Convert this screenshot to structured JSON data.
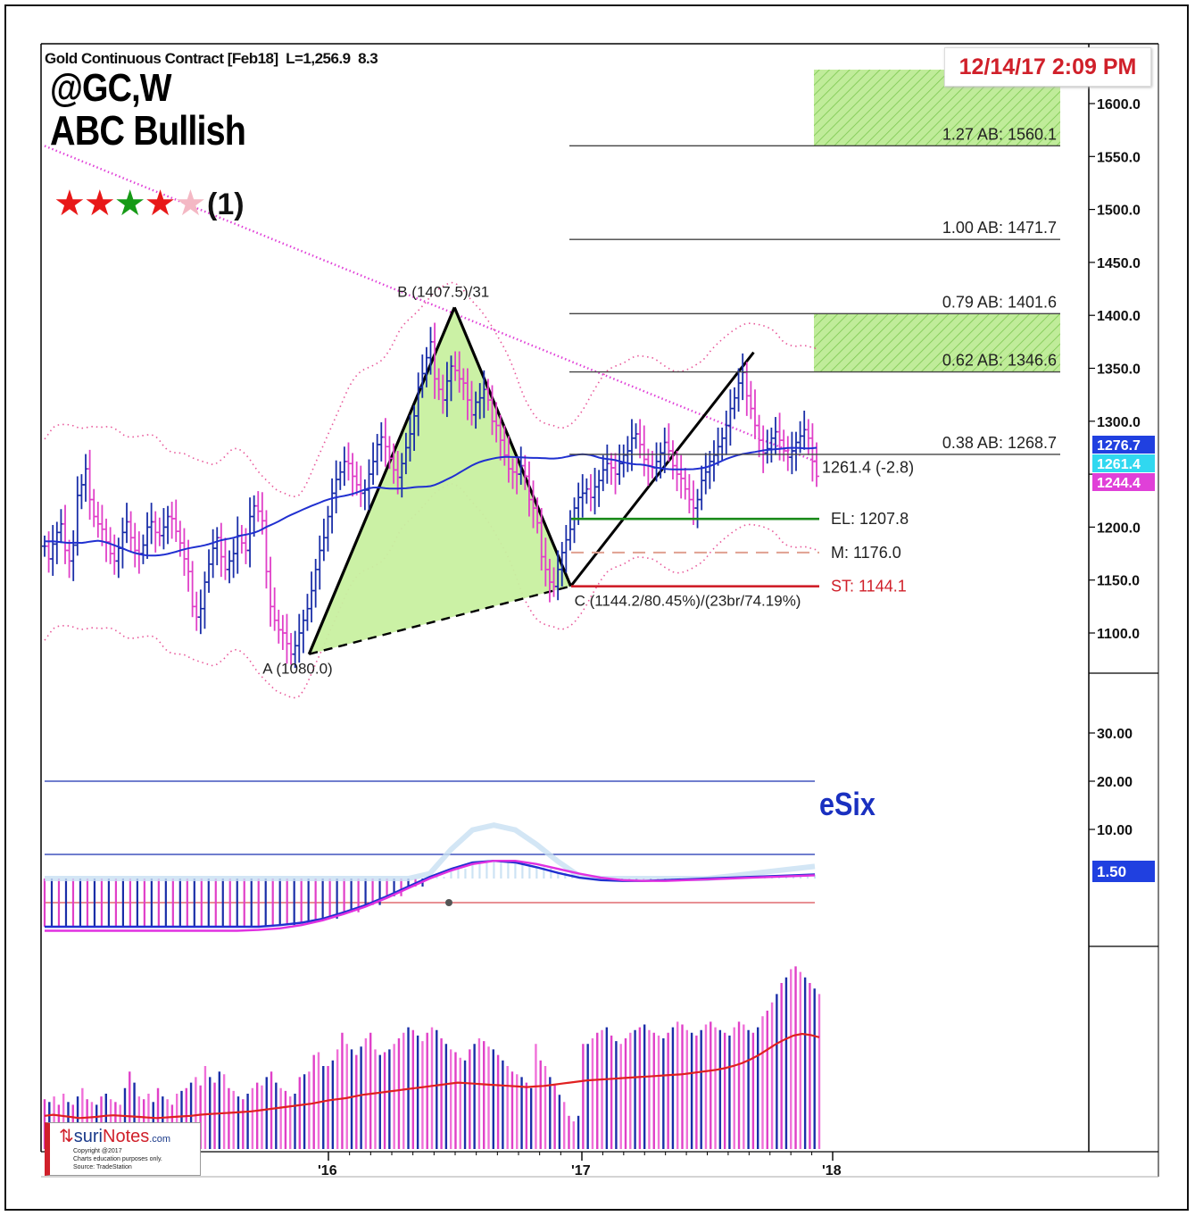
{
  "header": {
    "contract": "Gold Continuous Contract [Feb18]",
    "last": "L=1,256.9",
    "change": "8.3",
    "symbol": "@GC,W",
    "pattern": "ABC Bullish",
    "timestamp": "12/14/17 2:09 PM",
    "rating_text": "(1)",
    "stars": [
      "red",
      "red",
      "green",
      "red",
      "pink"
    ],
    "indicator_name": "eSix"
  },
  "watermark": {
    "brand_prefix": "suri",
    "brand_suffix": "Notes",
    "brand_domain": ".com",
    "line1": "Copyright @2017",
    "line2": "Charts education purposes only.",
    "line3": "Source: TradeStation"
  },
  "colors": {
    "up_bar": "#1a2ea8",
    "down_bar": "#e040c8",
    "ma_blue": "#2030d0",
    "envelope": "#e8589a",
    "triangle_fill": "#c8f0a0",
    "target_zone": "#b8e890",
    "entry": "#1a8a1a",
    "stop": "#d0202a",
    "mid": "#e0a090",
    "label_blue": "#2040e0",
    "label_cyan": "#30d8f0",
    "label_magenta": "#e040d8"
  },
  "chart_data": {
    "type": "bar",
    "title": "ABC Bullish",
    "x_ticks": [
      "'16",
      "'17",
      "'18"
    ],
    "price_axis": {
      "ticks": [
        "1600.0",
        "1550.0",
        "1500.0",
        "1450.0",
        "1400.0",
        "1350.0",
        "1300.0",
        "1250.0",
        "1200.0",
        "1150.0",
        "1100.0"
      ],
      "ylim": [
        1060,
        1645
      ]
    },
    "points": [
      {
        "name": "A",
        "label": "A (1080.0)",
        "date": "2015-12-04",
        "price": 1080.0
      },
      {
        "name": "B",
        "label": "B (1407.5)/31",
        "date": "2016-07-01",
        "price": 1407.5
      },
      {
        "name": "C",
        "label": "C (1144.2/80.45%)/(23br/74.19%)",
        "date": "2016-12-16",
        "price": 1144.2
      }
    ],
    "targets": [
      {
        "label": "1.27 AB: 1560.1",
        "price": 1560.1
      },
      {
        "label": "1.00 AB: 1471.7",
        "price": 1471.7
      },
      {
        "label": "0.79 AB: 1401.6",
        "price": 1401.6
      },
      {
        "label": "0.62 AB: 1346.6",
        "price": 1346.6
      },
      {
        "label": "0.38 AB: 1268.7",
        "price": 1268.7
      }
    ],
    "levels": [
      {
        "label": "EL: 1207.8",
        "price": 1207.8,
        "style": "entry"
      },
      {
        "label": "M: 1176.0",
        "price": 1176.0,
        "style": "mid"
      },
      {
        "label": "ST: 1144.1",
        "price": 1144.1,
        "style": "stop"
      }
    ],
    "current": {
      "label": "1261.4 (-2.8)",
      "price": 1261.4
    },
    "axis_badges": [
      {
        "text": "1276.7",
        "price": 1276.7,
        "color": "blue"
      },
      {
        "text": "1261.4",
        "price": 1261.4,
        "color": "cyan"
      },
      {
        "text": "1244.4",
        "price": 1244.4,
        "color": "magenta"
      }
    ],
    "indicator_axis": {
      "ticks": [
        "30.00",
        "20.00",
        "10.00"
      ],
      "badge": "1.50"
    },
    "price_bars": [
      1182,
      1170,
      1184,
      1195,
      1203,
      1178,
      1168,
      1183,
      1230,
      1240,
      1255,
      1226,
      1210,
      1203,
      1198,
      1186,
      1175,
      1168,
      1180,
      1195,
      1205,
      1190,
      1178,
      1175,
      1183,
      1200,
      1205,
      1195,
      1192,
      1200,
      1210,
      1208,
      1196,
      1185,
      1170,
      1158,
      1125,
      1115,
      1123,
      1148,
      1165,
      1180,
      1190,
      1172,
      1160,
      1168,
      1175,
      1192,
      1185,
      1178,
      1210,
      1220,
      1215,
      1206,
      1158,
      1125,
      1112,
      1103,
      1100,
      1090,
      1080,
      1088,
      1100,
      1112,
      1123,
      1140,
      1160,
      1178,
      1190,
      1210,
      1232,
      1245,
      1252,
      1262,
      1260,
      1248,
      1240,
      1232,
      1235,
      1250,
      1262,
      1278,
      1285,
      1276,
      1265,
      1254,
      1247,
      1260,
      1275,
      1288,
      1305,
      1332,
      1345,
      1360,
      1375,
      1340,
      1330,
      1320,
      1338,
      1352,
      1348,
      1340,
      1336,
      1320,
      1306,
      1318,
      1322,
      1330,
      1320,
      1300,
      1296,
      1282,
      1268,
      1255,
      1252,
      1250,
      1258,
      1248,
      1226,
      1218,
      1204,
      1172,
      1160,
      1148,
      1144,
      1160,
      1176,
      1188,
      1198,
      1218,
      1228,
      1232,
      1236,
      1228,
      1238,
      1244,
      1254,
      1260,
      1256,
      1250,
      1260,
      1268,
      1272,
      1284,
      1288,
      1278,
      1264,
      1258,
      1256,
      1262,
      1270,
      1280,
      1272,
      1258,
      1250,
      1246,
      1236,
      1226,
      1218,
      1226,
      1244,
      1252,
      1262,
      1268,
      1276,
      1284,
      1296,
      1312,
      1322,
      1336,
      1346,
      1324,
      1312,
      1296,
      1282,
      1270,
      1274,
      1284,
      1290,
      1282,
      1272,
      1266,
      1272,
      1280,
      1286,
      1292,
      1284,
      1262,
      1248
    ],
    "volume_bars": [
      90,
      85,
      95,
      80,
      100,
      85,
      80,
      95,
      110,
      90,
      85,
      80,
      95,
      100,
      90,
      85,
      80,
      110,
      140,
      120,
      95,
      90,
      100,
      85,
      110,
      95,
      90,
      80,
      100,
      105,
      110,
      120,
      130,
      115,
      150,
      130,
      120,
      140,
      135,
      110,
      105,
      95,
      90,
      100,
      110,
      120,
      115,
      130,
      140,
      120,
      110,
      105,
      95,
      100,
      130,
      135,
      140,
      170,
      175,
      150,
      150,
      160,
      180,
      210,
      190,
      180,
      170,
      185,
      200,
      210,
      180,
      170,
      175,
      180,
      190,
      200,
      210,
      220,
      215,
      205,
      195,
      210,
      220,
      215,
      200,
      190,
      180,
      175,
      165,
      160,
      180,
      190,
      200,
      195,
      185,
      180,
      170,
      160,
      150,
      140,
      135,
      130,
      120,
      110,
      190,
      160,
      150,
      130,
      115,
      98,
      85,
      60,
      50,
      60,
      190,
      190,
      200,
      210,
      215,
      220,
      205,
      195,
      190,
      200,
      210,
      215,
      220,
      225,
      215,
      210,
      205,
      200,
      210,
      220,
      230,
      225,
      215,
      210,
      205,
      215,
      225,
      230,
      220,
      215,
      210,
      205,
      220,
      230,
      225,
      215,
      210,
      220,
      240,
      250,
      265,
      280,
      300,
      310,
      325,
      330,
      320,
      310,
      300,
      290,
      280
    ],
    "volume_ma": [
      60,
      62,
      60,
      58,
      56,
      57,
      58,
      60,
      61,
      60,
      59,
      58,
      57,
      56,
      57,
      58,
      59,
      60,
      62,
      63,
      64,
      65,
      66,
      67,
      68,
      70,
      72,
      74,
      76,
      78,
      80,
      82,
      85,
      88,
      90,
      92,
      95,
      98,
      100,
      102,
      104,
      106,
      108,
      110,
      112,
      114,
      116,
      118,
      120,
      119,
      118,
      117,
      116,
      115,
      114,
      113,
      112,
      113,
      114,
      116,
      118,
      120,
      122,
      124,
      125,
      126,
      127,
      128,
      129,
      130,
      131,
      132,
      133,
      134,
      135,
      137,
      139,
      141,
      143,
      146,
      150,
      155,
      162,
      170,
      180,
      190,
      198,
      205,
      208,
      206,
      202
    ],
    "esix_series": [
      -60,
      -60,
      -60,
      -60,
      -60,
      -60,
      -60,
      -60,
      -60,
      -60,
      -60,
      -58,
      -55,
      -50,
      -42,
      -33,
      -22,
      -10,
      2,
      12,
      20,
      22,
      20,
      14,
      7,
      1,
      -2,
      -3,
      -3,
      -2,
      -1,
      0,
      1,
      2,
      3,
      4,
      5
    ],
    "esix_signal": [
      -65,
      -65,
      -65,
      -65,
      -65,
      -65,
      -65,
      -65,
      -65,
      -65,
      -64,
      -62,
      -58,
      -52,
      -44,
      -35,
      -24,
      -12,
      0,
      10,
      18,
      22,
      22,
      18,
      12,
      6,
      1,
      -2,
      -3,
      -3,
      -2,
      -1,
      0,
      1,
      2,
      3,
      4
    ]
  }
}
